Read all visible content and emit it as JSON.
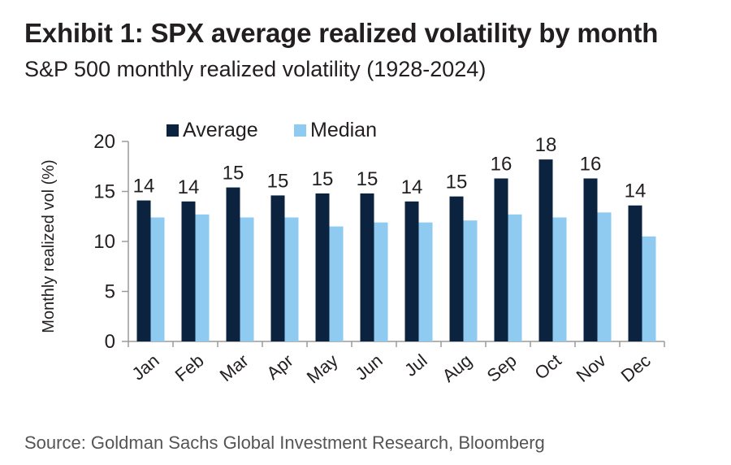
{
  "header": {
    "title": "Exhibit 1: SPX average realized volatility by month",
    "subtitle": "S&P 500 monthly realized volatility (1928-2024)"
  },
  "footer": {
    "source": "Source: Goldman Sachs Global Investment Research, Bloomberg"
  },
  "colors": {
    "average": "#0c2340",
    "median": "#8fcaf0",
    "axis": "#9a9a9a",
    "text": "#231f20"
  },
  "chart_data": {
    "type": "bar",
    "title": "",
    "xlabel": "",
    "ylabel": "Monthly realized vol (%)",
    "ylim": [
      0,
      20
    ],
    "yticks": [
      "0",
      "5",
      "10",
      "15",
      "20"
    ],
    "legend_position": "top-left",
    "grid": false,
    "categories": [
      "Jan",
      "Feb",
      "Mar",
      "Apr",
      "May",
      "Jun",
      "Jul",
      "Aug",
      "Sep",
      "Oct",
      "Nov",
      "Dec"
    ],
    "series": [
      {
        "name": "Average",
        "values": [
          14.1,
          14.0,
          15.4,
          14.6,
          14.8,
          14.8,
          14.0,
          14.5,
          16.3,
          18.2,
          16.3,
          13.6
        ],
        "labels": [
          "14",
          "14",
          "15",
          "15",
          "15",
          "15",
          "14",
          "15",
          "16",
          "18",
          "16",
          "14"
        ]
      },
      {
        "name": "Median",
        "values": [
          12.4,
          12.7,
          12.4,
          12.4,
          11.5,
          11.9,
          11.9,
          12.1,
          12.7,
          12.4,
          12.9,
          10.5
        ]
      }
    ]
  }
}
